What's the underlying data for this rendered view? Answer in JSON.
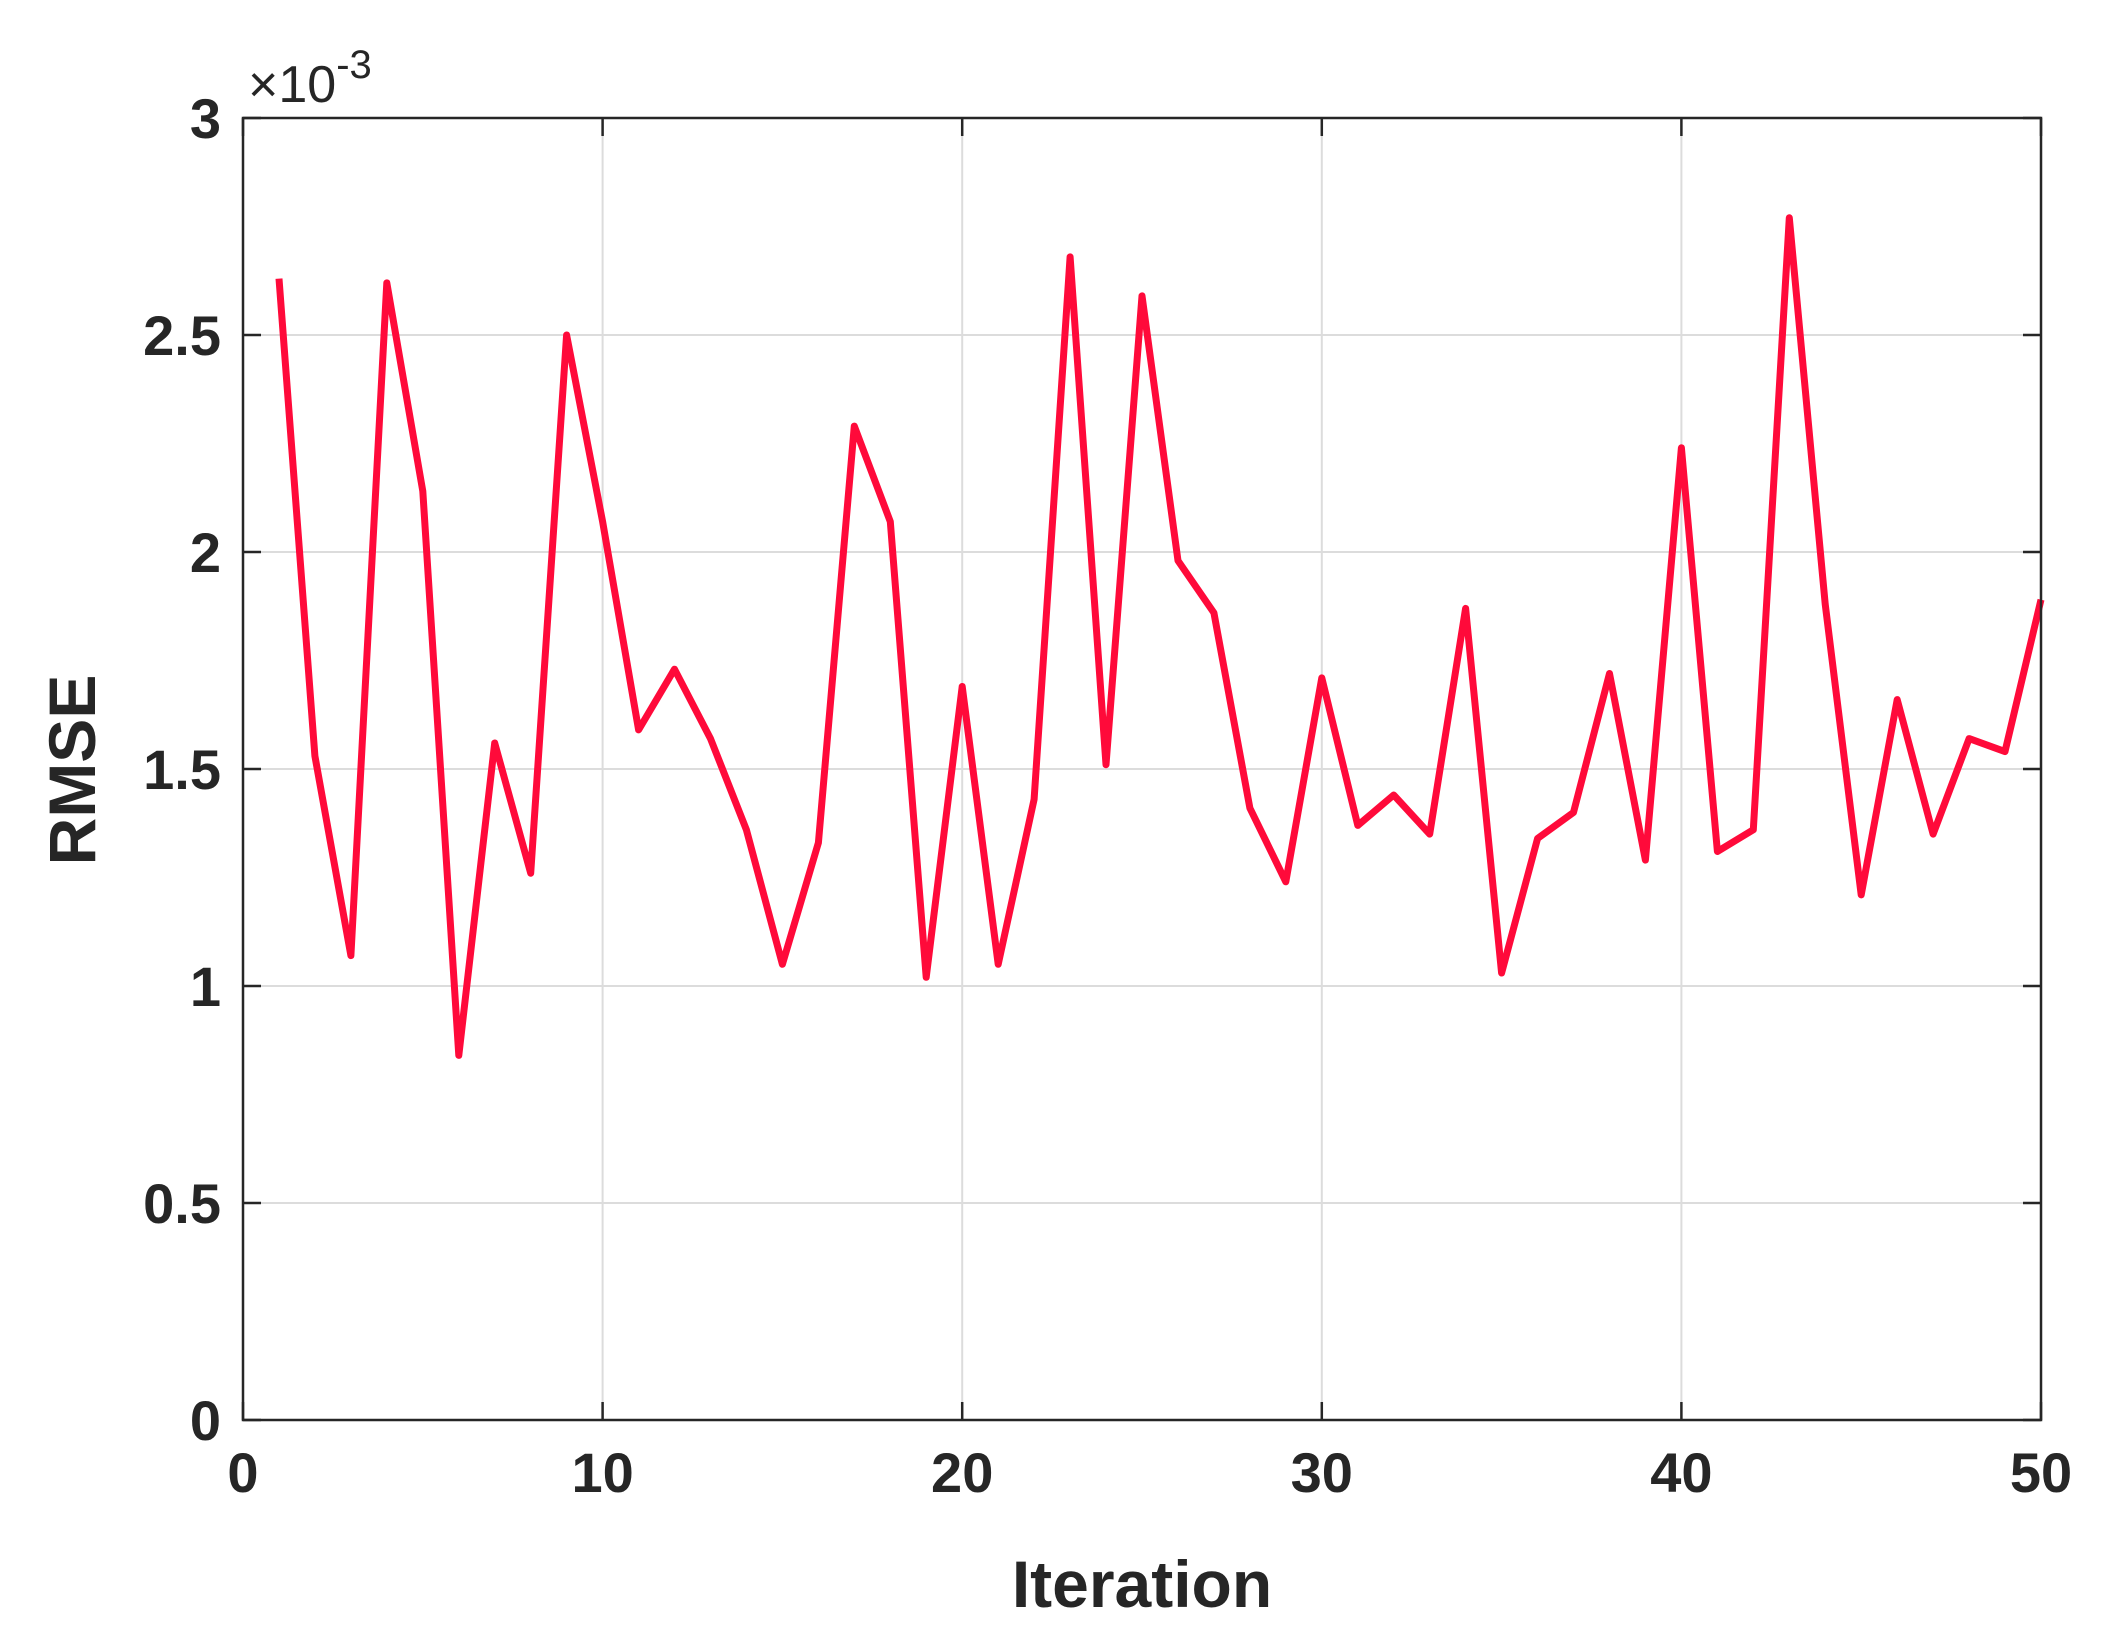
{
  "chart_data": {
    "type": "line",
    "xlabel": "Iteration",
    "ylabel": "RMSE",
    "xlim": [
      0,
      50
    ],
    "ylim": [
      0,
      3
    ],
    "xticks": [
      "0",
      "10",
      "20",
      "30",
      "40",
      "50"
    ],
    "yticks": [
      "0",
      "0.5",
      "1",
      "1.5",
      "2",
      "2.5",
      "3"
    ],
    "y_exponent_multiplier": "×10",
    "y_exponent_power": "-3",
    "grid": true,
    "line_color": "#ff0a3a",
    "series": [
      {
        "x": [
          1,
          2,
          3,
          4,
          5,
          6,
          7,
          8,
          9,
          10,
          11,
          12,
          13,
          14,
          15,
          16,
          17,
          18,
          19,
          20,
          21,
          22,
          23,
          24,
          25,
          26,
          27,
          28,
          29,
          30,
          31,
          32,
          33,
          34,
          35,
          36,
          37,
          38,
          39,
          40,
          41,
          42,
          43,
          44,
          45,
          46,
          47,
          48,
          49,
          50
        ],
        "values": [
          2.63,
          1.53,
          1.07,
          2.62,
          2.14,
          0.84,
          1.56,
          1.26,
          2.5,
          2.07,
          1.59,
          1.73,
          1.57,
          1.36,
          1.05,
          1.33,
          2.29,
          2.07,
          1.02,
          1.69,
          1.05,
          1.43,
          2.68,
          1.51,
          2.59,
          1.98,
          1.86,
          1.41,
          1.24,
          1.71,
          1.37,
          1.44,
          1.35,
          1.87,
          1.03,
          1.34,
          1.4,
          1.72,
          1.29,
          2.24,
          1.31,
          1.36,
          2.77,
          1.88,
          1.21,
          1.66,
          1.35,
          1.57,
          1.54,
          1.89
        ]
      }
    ]
  }
}
